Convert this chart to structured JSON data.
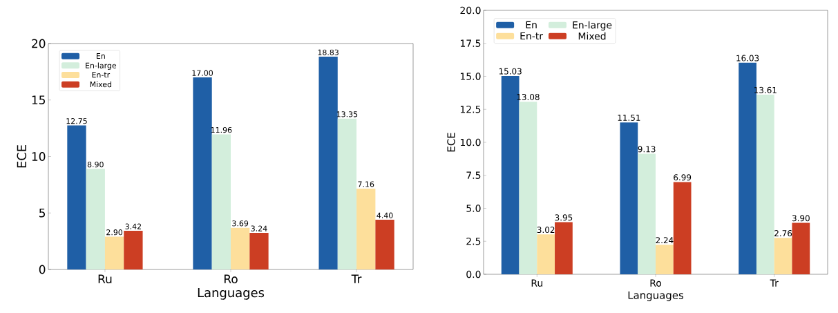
{
  "chart_data": [
    {
      "type": "bar",
      "xlabel": "Languages",
      "ylabel": "ECE",
      "categories": [
        "Ru",
        "Ro",
        "Tr"
      ],
      "ylim": [
        0,
        20
      ],
      "yticks": [
        0,
        5,
        10,
        15,
        20
      ],
      "legend": "top left",
      "grid": false,
      "series": [
        {
          "name": "En",
          "color": "#1f5fa6",
          "values": [
            12.75,
            17.0,
            18.83
          ],
          "value_labels": [
            "12.75",
            "17.00",
            "18.83"
          ]
        },
        {
          "name": "En-large",
          "color": "#d3eedc",
          "values": [
            8.9,
            11.96,
            13.35
          ],
          "value_labels": [
            "8.90",
            "11.96",
            "13.35"
          ]
        },
        {
          "name": "En-tr",
          "color": "#fddf9b",
          "values": [
            2.9,
            3.69,
            7.16
          ],
          "value_labels": [
            "2.90",
            "3.69",
            "7.16"
          ]
        },
        {
          "name": "Mixed",
          "color": "#cc3e23",
          "values": [
            3.42,
            3.24,
            4.4
          ],
          "value_labels": [
            "3.42",
            "3.24",
            "4.40"
          ]
        }
      ]
    },
    {
      "type": "bar",
      "xlabel": "Languages",
      "ylabel": "ECE",
      "categories": [
        "Ru",
        "Ro",
        "Tr"
      ],
      "ylim": [
        0,
        20
      ],
      "yticks": [
        {
          "value": 0,
          "label": "0.0"
        },
        {
          "value": 2.5,
          "label": "2.5"
        },
        {
          "value": 5,
          "label": "5.0"
        },
        {
          "value": 7.5,
          "label": "7.5"
        },
        {
          "value": 10,
          "label": "10.0"
        },
        {
          "value": 12.5,
          "label": "12.5"
        },
        {
          "value": 15,
          "label": "15.0"
        },
        {
          "value": 17.5,
          "label": "17.5"
        },
        {
          "value": 20,
          "label": "20.0"
        }
      ],
      "legend": "top left",
      "grid": false,
      "series": [
        {
          "name": "En",
          "color": "#1f5fa6",
          "values": [
            15.03,
            11.51,
            16.03
          ],
          "value_labels": [
            "15.03",
            "11.51",
            "16.03"
          ]
        },
        {
          "name": "En-large",
          "color": "#d3eedc",
          "values": [
            13.08,
            9.13,
            13.61
          ],
          "value_labels": [
            "13.08",
            "9.13",
            "13.61"
          ]
        },
        {
          "name": "En-tr",
          "color": "#fddf9b",
          "values": [
            3.02,
            2.24,
            2.76
          ],
          "value_labels": [
            "3.02",
            "2.24",
            "2.76"
          ]
        },
        {
          "name": "Mixed",
          "color": "#cc3e23",
          "values": [
            3.95,
            6.99,
            3.9
          ],
          "value_labels": [
            "3.95",
            "6.99",
            "3.90"
          ]
        }
      ]
    }
  ]
}
